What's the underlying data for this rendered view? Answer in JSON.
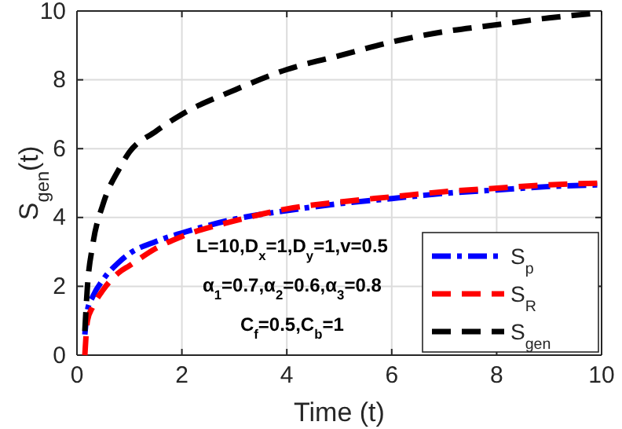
{
  "chart_data": {
    "type": "line",
    "xlabel": "Time (t)",
    "ylabel": "S$_{gen}$(t)",
    "xlim": [
      0,
      10
    ],
    "ylim": [
      0,
      10
    ],
    "xticks": [
      0,
      2,
      4,
      6,
      8,
      10
    ],
    "yticks": [
      0,
      2,
      4,
      6,
      8,
      10
    ],
    "grid": true,
    "legend": "bottom right",
    "annotations": [
      "L=10,D$_{x}$=1,D$_{y}$=1,v=0.5",
      "α$_{1}$=0.7,α$_{2}$=0.6,α$_{3}$=0.8",
      "C$_{f}$=0.5,C$_{b}$=1"
    ],
    "x": [
      0.15,
      0.2,
      0.3,
      0.5,
      0.8,
      1,
      1.5,
      2,
      3,
      4,
      5,
      6,
      7,
      8,
      9,
      10
    ],
    "series": [
      {
        "name": "S$_{p}$",
        "color": "#0000ff",
        "line_style": "dashdot",
        "values": [
          0.6,
          1.3,
          1.7,
          2.2,
          2.7,
          2.95,
          3.3,
          3.55,
          3.95,
          4.2,
          4.4,
          4.55,
          4.7,
          4.8,
          4.9,
          4.95
        ]
      },
      {
        "name": "S$_{R}$",
        "color": "#ff0000",
        "line_style": "dashed",
        "values": [
          0,
          1.0,
          1.4,
          1.9,
          2.4,
          2.6,
          3.1,
          3.45,
          3.9,
          4.25,
          4.45,
          4.6,
          4.75,
          4.85,
          4.95,
          5.0
        ]
      },
      {
        "name": "S$_{gen}$",
        "color": "#000000",
        "line_style": "dashed",
        "values": [
          0.7,
          2.0,
          3.2,
          4.4,
          5.4,
          5.9,
          6.5,
          7.0,
          7.7,
          8.3,
          8.7,
          9.1,
          9.4,
          9.6,
          9.8,
          9.95
        ]
      }
    ]
  }
}
